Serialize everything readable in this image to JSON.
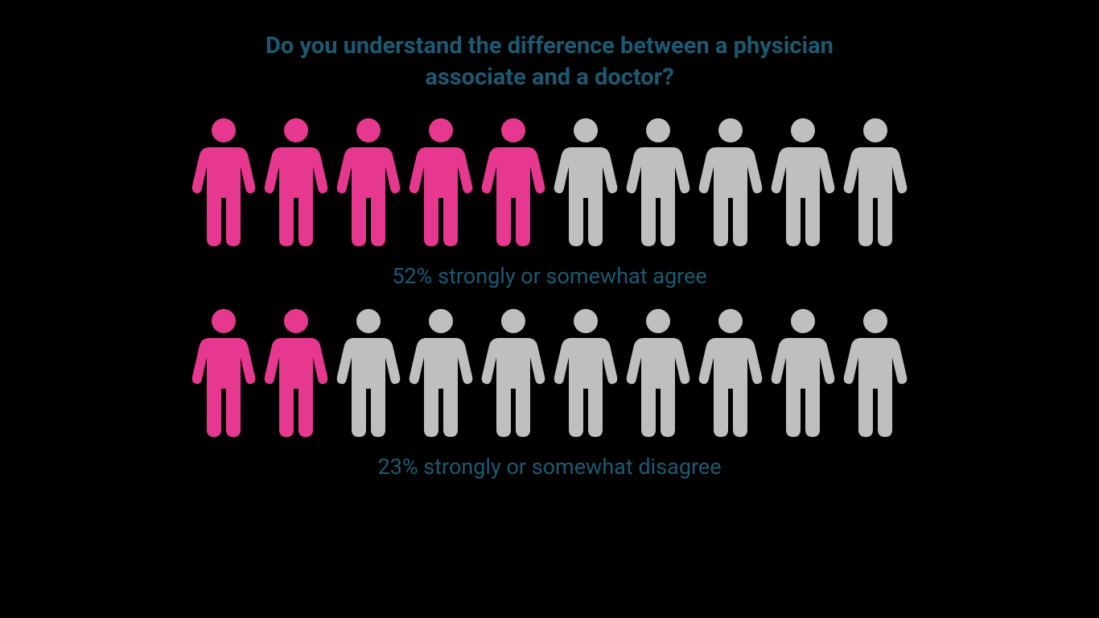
{
  "title": "Do you understand the difference between a physician associate and a doctor?",
  "colors": {
    "highlight": "#e6388e",
    "muted": "#bfbfbf",
    "text": "#1c5a72",
    "background": "#000000"
  },
  "rows": [
    {
      "total_icons": 10,
      "highlighted": 5,
      "caption": "52% strongly or somewhat agree"
    },
    {
      "total_icons": 10,
      "highlighted": 2,
      "caption": "23% strongly or somewhat disagree"
    }
  ],
  "icon": {
    "width": 90,
    "height": 165
  },
  "typography": {
    "title_fontsize": 29,
    "title_weight": 700,
    "caption_fontsize": 27,
    "caption_weight": 400
  }
}
